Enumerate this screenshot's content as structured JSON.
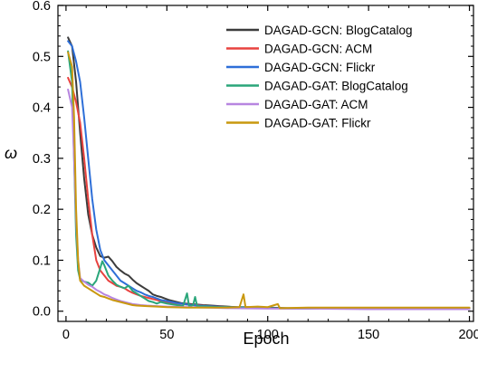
{
  "chart_data": {
    "type": "line",
    "title": "",
    "xlabel": "Epoch",
    "ylabel": "ω",
    "xlim": [
      -4,
      202
    ],
    "ylim": [
      -0.02,
      0.6
    ],
    "xticks": [
      0,
      50,
      100,
      150,
      200
    ],
    "yticks": [
      0.0,
      0.1,
      0.2,
      0.3,
      0.4,
      0.5,
      0.6
    ],
    "xtick_labels": [
      "0",
      "50",
      "100",
      "150",
      "200"
    ],
    "ytick_labels": [
      "0.0",
      "0.1",
      "0.2",
      "0.3",
      "0.4",
      "0.5",
      "0.6"
    ],
    "grid": false,
    "legend_position": "top-right",
    "series": [
      {
        "name": "DAGAD-GCN: BlogCatalog",
        "color": "#3c3c3c",
        "points": [
          [
            1,
            0.537
          ],
          [
            3,
            0.52
          ],
          [
            5,
            0.45
          ],
          [
            7,
            0.35
          ],
          [
            9,
            0.26
          ],
          [
            11,
            0.19
          ],
          [
            13,
            0.15
          ],
          [
            15,
            0.125
          ],
          [
            17,
            0.108
          ],
          [
            19,
            0.105
          ],
          [
            21,
            0.107
          ],
          [
            23,
            0.098
          ],
          [
            25,
            0.087
          ],
          [
            27,
            0.08
          ],
          [
            29,
            0.074
          ],
          [
            31,
            0.07
          ],
          [
            33,
            0.062
          ],
          [
            35,
            0.055
          ],
          [
            37,
            0.05
          ],
          [
            39,
            0.045
          ],
          [
            41,
            0.04
          ],
          [
            43,
            0.033
          ],
          [
            45,
            0.03
          ],
          [
            47,
            0.028
          ],
          [
            49,
            0.025
          ],
          [
            51,
            0.022
          ],
          [
            53,
            0.02
          ],
          [
            55,
            0.018
          ],
          [
            57,
            0.016
          ],
          [
            59,
            0.015
          ],
          [
            62,
            0.014
          ],
          [
            65,
            0.013
          ],
          [
            68,
            0.012
          ],
          [
            72,
            0.011
          ],
          [
            76,
            0.01
          ],
          [
            80,
            0.009
          ],
          [
            85,
            0.008
          ],
          [
            90,
            0.008
          ],
          [
            95,
            0.007
          ],
          [
            100,
            0.007
          ],
          [
            110,
            0.006
          ],
          [
            120,
            0.006
          ],
          [
            130,
            0.006
          ],
          [
            140,
            0.005
          ],
          [
            150,
            0.005
          ],
          [
            160,
            0.005
          ],
          [
            170,
            0.005
          ],
          [
            180,
            0.005
          ],
          [
            190,
            0.005
          ],
          [
            200,
            0.005
          ]
        ]
      },
      {
        "name": "DAGAD-GCN: ACM",
        "color": "#e8423f",
        "points": [
          [
            1,
            0.458
          ],
          [
            3,
            0.44
          ],
          [
            5,
            0.41
          ],
          [
            7,
            0.37
          ],
          [
            9,
            0.3
          ],
          [
            11,
            0.22
          ],
          [
            13,
            0.15
          ],
          [
            15,
            0.1
          ],
          [
            17,
            0.08
          ],
          [
            19,
            0.07
          ],
          [
            21,
            0.06
          ],
          [
            23,
            0.055
          ],
          [
            25,
            0.05
          ],
          [
            27,
            0.048
          ],
          [
            29,
            0.045
          ],
          [
            31,
            0.04
          ],
          [
            33,
            0.036
          ],
          [
            35,
            0.033
          ],
          [
            37,
            0.03
          ],
          [
            39,
            0.028
          ],
          [
            41,
            0.026
          ],
          [
            43,
            0.024
          ],
          [
            45,
            0.022
          ],
          [
            47,
            0.02
          ],
          [
            50,
            0.018
          ],
          [
            55,
            0.015
          ],
          [
            60,
            0.013
          ],
          [
            65,
            0.012
          ],
          [
            70,
            0.01
          ],
          [
            75,
            0.009
          ],
          [
            80,
            0.008
          ],
          [
            90,
            0.007
          ],
          [
            100,
            0.006
          ],
          [
            120,
            0.005
          ],
          [
            140,
            0.005
          ],
          [
            160,
            0.005
          ],
          [
            180,
            0.004
          ],
          [
            200,
            0.004
          ]
        ]
      },
      {
        "name": "DAGAD-GCN: Flickr",
        "color": "#2e6fd8",
        "points": [
          [
            1,
            0.53
          ],
          [
            3,
            0.52
          ],
          [
            5,
            0.49
          ],
          [
            7,
            0.45
          ],
          [
            9,
            0.38
          ],
          [
            11,
            0.3
          ],
          [
            13,
            0.22
          ],
          [
            15,
            0.16
          ],
          [
            17,
            0.12
          ],
          [
            19,
            0.1
          ],
          [
            21,
            0.09
          ],
          [
            23,
            0.08
          ],
          [
            25,
            0.07
          ],
          [
            27,
            0.06
          ],
          [
            29,
            0.055
          ],
          [
            31,
            0.05
          ],
          [
            33,
            0.045
          ],
          [
            35,
            0.04
          ],
          [
            37,
            0.037
          ],
          [
            39,
            0.033
          ],
          [
            41,
            0.03
          ],
          [
            43,
            0.028
          ],
          [
            45,
            0.025
          ],
          [
            47,
            0.022
          ],
          [
            50,
            0.02
          ],
          [
            55,
            0.016
          ],
          [
            60,
            0.013
          ],
          [
            65,
            0.011
          ],
          [
            70,
            0.01
          ],
          [
            80,
            0.008
          ],
          [
            90,
            0.007
          ],
          [
            100,
            0.006
          ],
          [
            120,
            0.005
          ],
          [
            140,
            0.005
          ],
          [
            160,
            0.004
          ],
          [
            180,
            0.004
          ],
          [
            200,
            0.004
          ]
        ]
      },
      {
        "name": "DAGAD-GAT: BlogCatalog",
        "color": "#2aa67a",
        "points": [
          [
            1,
            0.51
          ],
          [
            3,
            0.45
          ],
          [
            4,
            0.3
          ],
          [
            5,
            0.15
          ],
          [
            6,
            0.08
          ],
          [
            7,
            0.062
          ],
          [
            9,
            0.058
          ],
          [
            11,
            0.056
          ],
          [
            13,
            0.05
          ],
          [
            15,
            0.06
          ],
          [
            17,
            0.085
          ],
          [
            18,
            0.098
          ],
          [
            19,
            0.09
          ],
          [
            21,
            0.07
          ],
          [
            23,
            0.06
          ],
          [
            25,
            0.052
          ],
          [
            27,
            0.048
          ],
          [
            29,
            0.045
          ],
          [
            31,
            0.05
          ],
          [
            33,
            0.04
          ],
          [
            35,
            0.035
          ],
          [
            37,
            0.03
          ],
          [
            39,
            0.025
          ],
          [
            41,
            0.02
          ],
          [
            43,
            0.018
          ],
          [
            45,
            0.015
          ],
          [
            47,
            0.018
          ],
          [
            50,
            0.015
          ],
          [
            55,
            0.012
          ],
          [
            58,
            0.01
          ],
          [
            60,
            0.035
          ],
          [
            61,
            0.01
          ],
          [
            63,
            0.012
          ],
          [
            64,
            0.028
          ],
          [
            65,
            0.01
          ],
          [
            70,
            0.009
          ],
          [
            75,
            0.008
          ],
          [
            80,
            0.008
          ],
          [
            90,
            0.007
          ],
          [
            100,
            0.006
          ],
          [
            120,
            0.005
          ],
          [
            140,
            0.005
          ],
          [
            160,
            0.005
          ],
          [
            180,
            0.005
          ],
          [
            200,
            0.005
          ]
        ]
      },
      {
        "name": "DAGAD-GAT: ACM",
        "color": "#b785e0",
        "points": [
          [
            1,
            0.435
          ],
          [
            3,
            0.4
          ],
          [
            4,
            0.3
          ],
          [
            5,
            0.18
          ],
          [
            6,
            0.1
          ],
          [
            7,
            0.065
          ],
          [
            9,
            0.058
          ],
          [
            11,
            0.052
          ],
          [
            13,
            0.048
          ],
          [
            15,
            0.042
          ],
          [
            17,
            0.038
          ],
          [
            19,
            0.033
          ],
          [
            21,
            0.03
          ],
          [
            23,
            0.026
          ],
          [
            25,
            0.023
          ],
          [
            27,
            0.02
          ],
          [
            29,
            0.018
          ],
          [
            31,
            0.016
          ],
          [
            33,
            0.014
          ],
          [
            35,
            0.013
          ],
          [
            37,
            0.012
          ],
          [
            40,
            0.011
          ],
          [
            45,
            0.01
          ],
          [
            50,
            0.009
          ],
          [
            60,
            0.008
          ],
          [
            70,
            0.007
          ],
          [
            80,
            0.006
          ],
          [
            100,
            0.005
          ],
          [
            120,
            0.005
          ],
          [
            150,
            0.004
          ],
          [
            180,
            0.004
          ],
          [
            200,
            0.004
          ]
        ]
      },
      {
        "name": "DAGAD-GAT: Flickr",
        "color": "#c9980e",
        "points": [
          [
            1,
            0.508
          ],
          [
            3,
            0.48
          ],
          [
            4,
            0.38
          ],
          [
            5,
            0.2
          ],
          [
            6,
            0.1
          ],
          [
            7,
            0.06
          ],
          [
            9,
            0.05
          ],
          [
            11,
            0.045
          ],
          [
            13,
            0.04
          ],
          [
            15,
            0.035
          ],
          [
            17,
            0.03
          ],
          [
            19,
            0.028
          ],
          [
            21,
            0.025
          ],
          [
            23,
            0.022
          ],
          [
            25,
            0.02
          ],
          [
            27,
            0.018
          ],
          [
            29,
            0.016
          ],
          [
            31,
            0.014
          ],
          [
            33,
            0.012
          ],
          [
            35,
            0.011
          ],
          [
            40,
            0.01
          ],
          [
            45,
            0.009
          ],
          [
            50,
            0.008
          ],
          [
            60,
            0.007
          ],
          [
            70,
            0.007
          ],
          [
            80,
            0.007
          ],
          [
            86,
            0.008
          ],
          [
            88,
            0.033
          ],
          [
            89,
            0.008
          ],
          [
            95,
            0.009
          ],
          [
            100,
            0.008
          ],
          [
            105,
            0.014
          ],
          [
            106,
            0.006
          ],
          [
            120,
            0.007
          ],
          [
            140,
            0.007
          ],
          [
            160,
            0.007
          ],
          [
            180,
            0.007
          ],
          [
            200,
            0.007
          ]
        ]
      }
    ]
  }
}
